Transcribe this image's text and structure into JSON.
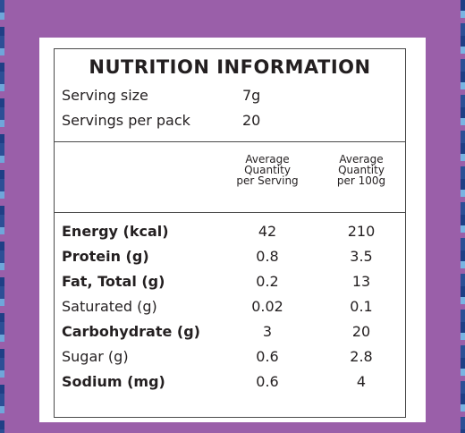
{
  "label": {
    "title": "NUTRITION INFORMATION",
    "serving_size_label": "Serving size",
    "serving_size_value": "7g",
    "servings_per_pack_label": "Servings per pack",
    "servings_per_pack_value": "20",
    "col_per_serving": [
      "Average",
      "Quantity",
      "per Serving"
    ],
    "col_per_100g": [
      "Average",
      "Quantity",
      "per 100g"
    ],
    "rows": [
      {
        "name": "Energy (kcal)",
        "per_serving": "42",
        "per_100g": "210",
        "bold": true
      },
      {
        "name": "Protein (g)",
        "per_serving": "0.8",
        "per_100g": "3.5",
        "bold": true
      },
      {
        "name": "Fat, Total (g)",
        "per_serving": "0.2",
        "per_100g": "13",
        "bold": true
      },
      {
        "name": "Saturated (g)",
        "per_serving": "0.02",
        "per_100g": "0.1",
        "bold": false
      },
      {
        "name": "Carbohydrate (g)",
        "per_serving": "3",
        "per_100g": "20",
        "bold": true
      },
      {
        "name": "Sugar (g)",
        "per_serving": "0.6",
        "per_100g": "2.8",
        "bold": false
      },
      {
        "name": "Sodium (mg)",
        "per_serving": "0.6",
        "per_100g": "4",
        "bold": true
      }
    ]
  },
  "colors": {
    "background": "#9a5fa9",
    "panel": "#ffffff",
    "text": "#231f20"
  }
}
